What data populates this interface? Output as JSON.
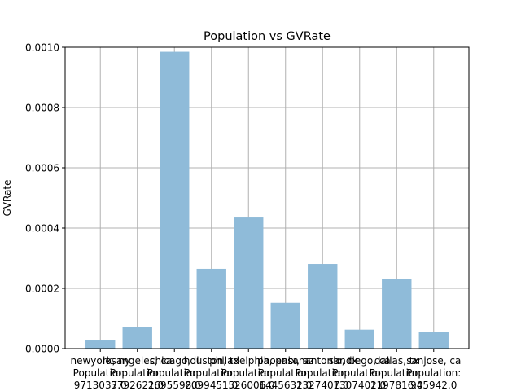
{
  "chart_data": {
    "type": "bar",
    "title": "Population vs GVRate",
    "xlabel": "",
    "ylabel": "GVRate",
    "ylim": [
      0,
      0.001
    ],
    "yticks": [
      "0.0000",
      "0.0002",
      "0.0004",
      "0.0006",
      "0.0008",
      "0.0010"
    ],
    "grid": true,
    "bar_color": "#8fbbd9",
    "categories": [
      [
        "newyork, ny",
        "Population:",
        "9713037.0"
      ],
      [
        "losangeles, ca",
        "Population:",
        "3792621.0"
      ],
      [
        "chicago, il",
        "Population:",
        "2695598.0"
      ],
      [
        "houston, tx",
        "Population:",
        "2099451.0"
      ],
      [
        "philadelphia, pa",
        "Population:",
        "1526006.0"
      ],
      [
        "phoenix, az",
        "Population:",
        "1445632.0"
      ],
      [
        "sanantonio, tx",
        "Population:",
        "1327407.0"
      ],
      [
        "sandiego, ca",
        "Population:",
        "1307402.0"
      ],
      [
        "dallas, tx",
        "Population:",
        "1197816.0"
      ],
      [
        "sanjose, ca",
        "Population:",
        "945942.0"
      ]
    ],
    "values": [
      2.7e-05,
      7.1e-05,
      0.000985,
      0.000265,
      0.000435,
      0.000152,
      0.000281,
      6.3e-05,
      0.000231,
      5.5e-05
    ]
  }
}
